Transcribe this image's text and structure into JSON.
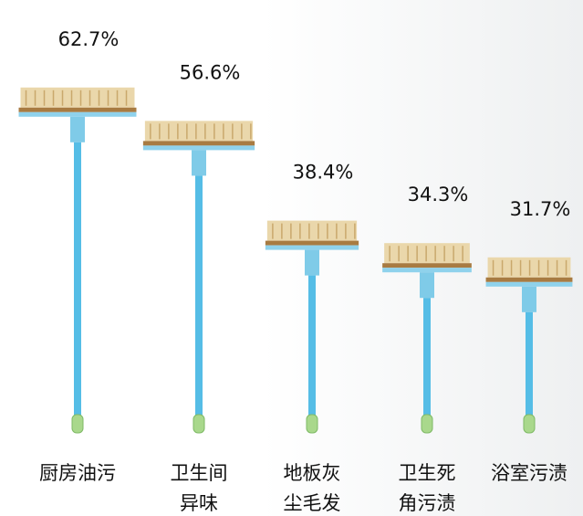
{
  "chart_data": {
    "type": "broom",
    "categories": [
      "厨房油污",
      "卫生间\n异味",
      "地板灰\n尘毛发",
      "卫生死\n角污渍",
      "浴室污渍"
    ],
    "values": [
      62.7,
      56.6,
      38.4,
      34.3,
      31.7
    ],
    "value_labels": [
      "62.7%",
      "56.6%",
      "38.4%",
      "34.3%",
      "31.7%"
    ]
  }
}
